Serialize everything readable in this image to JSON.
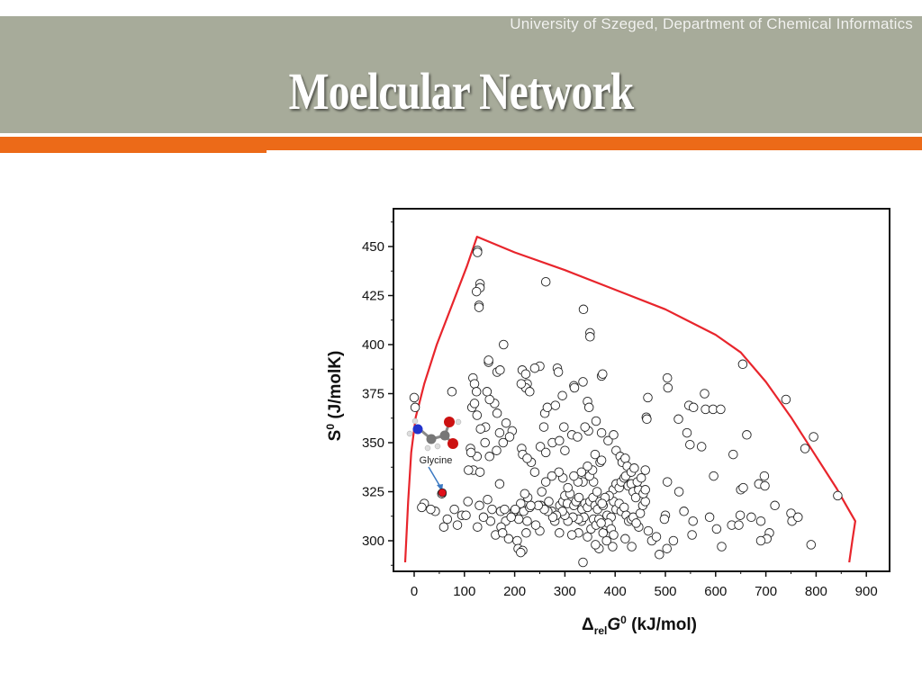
{
  "header": {
    "university": "University of Szeged, Department of Chemical Informatics",
    "title": "Moelcular Network"
  },
  "colors": {
    "band": "#a7ab9a",
    "accent": "#ec6a18",
    "envelope": "#e8252c",
    "highlight": "#e0101a"
  },
  "chart_data": {
    "type": "scatter",
    "title": "",
    "xlabel": "ΔrelG0 (kJ/mol)",
    "ylabel": "S0 (J/molK)",
    "xlim": [
      -40,
      940
    ],
    "ylim": [
      288,
      466
    ],
    "xticks": [
      0,
      100,
      200,
      300,
      400,
      500,
      600,
      700,
      800,
      900
    ],
    "yticks": [
      300,
      325,
      350,
      375,
      400,
      425,
      450
    ],
    "annotation": {
      "label": "Glycine",
      "x": 56,
      "y": 324.5
    },
    "envelope": [
      [
        -18,
        289
      ],
      [
        -12,
        320
      ],
      [
        -6,
        345
      ],
      [
        3,
        363
      ],
      [
        20,
        380
      ],
      [
        45,
        400
      ],
      [
        75,
        420
      ],
      [
        105,
        440
      ],
      [
        125,
        455
      ],
      [
        200,
        447
      ],
      [
        300,
        438
      ],
      [
        400,
        428
      ],
      [
        500,
        418
      ],
      [
        600,
        405
      ],
      [
        650,
        396
      ],
      [
        700,
        381
      ],
      [
        750,
        363
      ],
      [
        800,
        343
      ],
      [
        840,
        327
      ],
      [
        860,
        318
      ],
      [
        878,
        310
      ],
      [
        872,
        300
      ],
      [
        866,
        289
      ]
    ],
    "points": [
      [
        126,
        448
      ],
      [
        126,
        447
      ],
      [
        262,
        432
      ],
      [
        131,
        431
      ],
      [
        131,
        429
      ],
      [
        124,
        427
      ],
      [
        129,
        420
      ],
      [
        129,
        419
      ],
      [
        337,
        418
      ],
      [
        350,
        406
      ],
      [
        350,
        404
      ],
      [
        178,
        400
      ],
      [
        75,
        376
      ],
      [
        250,
        389
      ],
      [
        285,
        388
      ],
      [
        287,
        386
      ],
      [
        215,
        387
      ],
      [
        222,
        385
      ],
      [
        165,
        386
      ],
      [
        171,
        387
      ],
      [
        148,
        391
      ],
      [
        148,
        392
      ],
      [
        225,
        380
      ],
      [
        222,
        378
      ],
      [
        230,
        376
      ],
      [
        295,
        374
      ],
      [
        345,
        371
      ],
      [
        348,
        368
      ],
      [
        318,
        379
      ],
      [
        319,
        378
      ],
      [
        336,
        381
      ],
      [
        373,
        384
      ],
      [
        375,
        385
      ],
      [
        0,
        373
      ],
      [
        2,
        368
      ],
      [
        213,
        380
      ],
      [
        240,
        388
      ],
      [
        504,
        383
      ],
      [
        505,
        378
      ],
      [
        654,
        390
      ],
      [
        740,
        372
      ],
      [
        578,
        375
      ],
      [
        465,
        373
      ],
      [
        462,
        363
      ],
      [
        463,
        362
      ],
      [
        526,
        362
      ],
      [
        547,
        369
      ],
      [
        556,
        368
      ],
      [
        580,
        367
      ],
      [
        595,
        367
      ],
      [
        610,
        367
      ],
      [
        795,
        353
      ],
      [
        778,
        347
      ],
      [
        635,
        344
      ],
      [
        662,
        354
      ],
      [
        572,
        348
      ],
      [
        549,
        349
      ],
      [
        543,
        355
      ],
      [
        596,
        333
      ],
      [
        504,
        330
      ],
      [
        527,
        325
      ],
      [
        650,
        326
      ],
      [
        655,
        327
      ],
      [
        686,
        329
      ],
      [
        698,
        328
      ],
      [
        697,
        333
      ],
      [
        718,
        318
      ],
      [
        690,
        310
      ],
      [
        671,
        312
      ],
      [
        750,
        314
      ],
      [
        752,
        310
      ],
      [
        764,
        312
      ],
      [
        843,
        323
      ],
      [
        790,
        298
      ],
      [
        707,
        304
      ],
      [
        702,
        301
      ],
      [
        690,
        300
      ],
      [
        612,
        297
      ],
      [
        602,
        306
      ],
      [
        632,
        308
      ],
      [
        646,
        308
      ],
      [
        649,
        313
      ],
      [
        553,
        303
      ],
      [
        516,
        300
      ],
      [
        537,
        315
      ],
      [
        555,
        310
      ],
      [
        588,
        312
      ],
      [
        500,
        313
      ],
      [
        498,
        311
      ],
      [
        503,
        296
      ],
      [
        488,
        293
      ],
      [
        473,
        300
      ],
      [
        482,
        302
      ],
      [
        466,
        305
      ],
      [
        447,
        307
      ],
      [
        420,
        301
      ],
      [
        433,
        297
      ],
      [
        395,
        297
      ],
      [
        383,
        300
      ],
      [
        368,
        296
      ],
      [
        361,
        298
      ],
      [
        345,
        302
      ],
      [
        336,
        289
      ],
      [
        327,
        304
      ],
      [
        314,
        303
      ],
      [
        289,
        304
      ],
      [
        250,
        305
      ],
      [
        223,
        304
      ],
      [
        205,
        300
      ],
      [
        207,
        296
      ],
      [
        216,
        295
      ],
      [
        212,
        294
      ],
      [
        188,
        301
      ],
      [
        182,
        310
      ],
      [
        173,
        307
      ],
      [
        162,
        303
      ],
      [
        152,
        310
      ],
      [
        155,
        316
      ],
      [
        138,
        312
      ],
      [
        130,
        318
      ],
      [
        95,
        313
      ],
      [
        86,
        308
      ],
      [
        80,
        316
      ],
      [
        66,
        311
      ],
      [
        59,
        307
      ],
      [
        55,
        324
      ],
      [
        42,
        315
      ],
      [
        33,
        316
      ],
      [
        20,
        319
      ],
      [
        15,
        317
      ],
      [
        126,
        307
      ],
      [
        103,
        313
      ],
      [
        107,
        320
      ],
      [
        118,
        336
      ],
      [
        112,
        347
      ],
      [
        108,
        336
      ],
      [
        125,
        364
      ],
      [
        115,
        368
      ],
      [
        117,
        383
      ],
      [
        120,
        380
      ],
      [
        124,
        376
      ],
      [
        120,
        370
      ],
      [
        146,
        321
      ],
      [
        170,
        329
      ],
      [
        172,
        315
      ],
      [
        180,
        316
      ],
      [
        176,
        304
      ],
      [
        199,
        315
      ],
      [
        208,
        311
      ],
      [
        218,
        315
      ],
      [
        225,
        310
      ],
      [
        230,
        317
      ],
      [
        242,
        308
      ],
      [
        252,
        318
      ],
      [
        268,
        320
      ],
      [
        274,
        315
      ],
      [
        280,
        310
      ],
      [
        290,
        318
      ],
      [
        296,
        320
      ],
      [
        300,
        323
      ],
      [
        305,
        319
      ],
      [
        310,
        324
      ],
      [
        318,
        318
      ],
      [
        322,
        320
      ],
      [
        328,
        322
      ],
      [
        334,
        316
      ],
      [
        340,
        319
      ],
      [
        345,
        317
      ],
      [
        350,
        320
      ],
      [
        356,
        322
      ],
      [
        360,
        318
      ],
      [
        365,
        316
      ],
      [
        370,
        320
      ],
      [
        376,
        318
      ],
      [
        384,
        313
      ],
      [
        392,
        312
      ],
      [
        397,
        320
      ],
      [
        402,
        316
      ],
      [
        408,
        319
      ],
      [
        412,
        315
      ],
      [
        418,
        317
      ],
      [
        422,
        313
      ],
      [
        427,
        310
      ],
      [
        432,
        311
      ],
      [
        436,
        312
      ],
      [
        442,
        309
      ],
      [
        450,
        314
      ],
      [
        455,
        318
      ],
      [
        460,
        320
      ],
      [
        376,
        304
      ],
      [
        381,
        308
      ],
      [
        386,
        309
      ],
      [
        392,
        306
      ],
      [
        397,
        303
      ],
      [
        352,
        306
      ],
      [
        357,
        311
      ],
      [
        362,
        308
      ],
      [
        368,
        311
      ],
      [
        372,
        309
      ],
      [
        333,
        310
      ],
      [
        338,
        312
      ],
      [
        327,
        311
      ],
      [
        316,
        312
      ],
      [
        306,
        310
      ],
      [
        300,
        313
      ],
      [
        295,
        315
      ],
      [
        283,
        313
      ],
      [
        276,
        312
      ],
      [
        266,
        315
      ],
      [
        259,
        316
      ],
      [
        247,
        318
      ],
      [
        232,
        318
      ],
      [
        226,
        322
      ],
      [
        220,
        324
      ],
      [
        212,
        319
      ],
      [
        201,
        316
      ],
      [
        193,
        312
      ],
      [
        396,
        326
      ],
      [
        402,
        329
      ],
      [
        408,
        327
      ],
      [
        412,
        330
      ],
      [
        418,
        332
      ],
      [
        421,
        333
      ],
      [
        426,
        328
      ],
      [
        432,
        329
      ],
      [
        436,
        325
      ],
      [
        441,
        322
      ],
      [
        447,
        326
      ],
      [
        456,
        324
      ],
      [
        460,
        326
      ],
      [
        388,
        323
      ],
      [
        380,
        322
      ],
      [
        374,
        319
      ],
      [
        364,
        325
      ],
      [
        357,
        330
      ],
      [
        349,
        333
      ],
      [
        336,
        330
      ],
      [
        326,
        330
      ],
      [
        318,
        333
      ],
      [
        306,
        327
      ],
      [
        296,
        332
      ],
      [
        288,
        335
      ],
      [
        274,
        333
      ],
      [
        262,
        330
      ],
      [
        254,
        325
      ],
      [
        240,
        335
      ],
      [
        233,
        340
      ],
      [
        214,
        347
      ],
      [
        216,
        344
      ],
      [
        225,
        342
      ],
      [
        251,
        348
      ],
      [
        262,
        345
      ],
      [
        275,
        350
      ],
      [
        289,
        351
      ],
      [
        300,
        346
      ],
      [
        314,
        354
      ],
      [
        325,
        353
      ],
      [
        347,
        356
      ],
      [
        362,
        361
      ],
      [
        373,
        355
      ],
      [
        386,
        351
      ],
      [
        397,
        354
      ],
      [
        402,
        346
      ],
      [
        410,
        343
      ],
      [
        414,
        340
      ],
      [
        420,
        342
      ],
      [
        424,
        338
      ],
      [
        432,
        335
      ],
      [
        438,
        337
      ],
      [
        444,
        330
      ],
      [
        452,
        332
      ],
      [
        460,
        336
      ],
      [
        370,
        340
      ],
      [
        355,
        336
      ],
      [
        345,
        338
      ],
      [
        333,
        335
      ],
      [
        360,
        344
      ],
      [
        373,
        341
      ],
      [
        258,
        358
      ],
      [
        260,
        365
      ],
      [
        265,
        368
      ],
      [
        281,
        369
      ],
      [
        298,
        358
      ],
      [
        340,
        358
      ],
      [
        195,
        356
      ],
      [
        190,
        353
      ],
      [
        177,
        350
      ],
      [
        170,
        355
      ],
      [
        165,
        365
      ],
      [
        160,
        370
      ],
      [
        150,
        372
      ],
      [
        145,
        376
      ],
      [
        142,
        358
      ],
      [
        132,
        357
      ],
      [
        125,
        343
      ],
      [
        131,
        335
      ],
      [
        113,
        345
      ],
      [
        141,
        350
      ],
      [
        150,
        343
      ],
      [
        164,
        346
      ],
      [
        183,
        360
      ]
    ]
  }
}
